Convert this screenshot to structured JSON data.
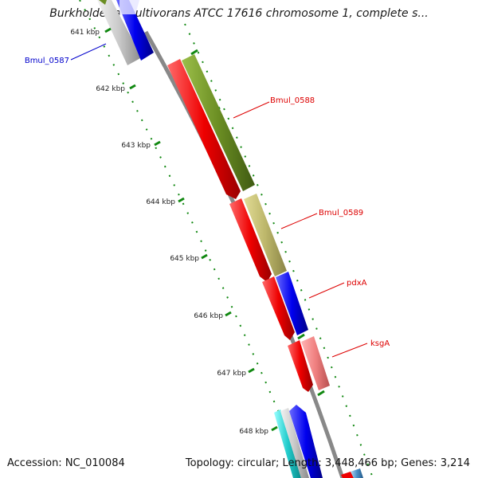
{
  "title": "Burkholderia multivorans ATCC 17616 chromosome 1, complete s...",
  "accession": "Accession: NC_010084",
  "info": "Topology: circular; Length: 3,448,466 bp; Genes: 3,214",
  "ticks": [
    "641 kbp",
    "642 kbp",
    "643 kbp",
    "644 kbp",
    "645 kbp",
    "646 kbp",
    "647 kbp",
    "648 kbp"
  ],
  "genes": [
    {
      "label": "Bmul_0587",
      "color": "#0000cc"
    },
    {
      "label": "Bmul_0588",
      "color": "#dd0000"
    },
    {
      "label": "Bmul_0589",
      "color": "#dd0000"
    },
    {
      "label": "pdxA",
      "color": "#dd0000"
    },
    {
      "label": "ksgA",
      "color": "#dd0000"
    }
  ],
  "colors": {
    "cds": "#ee0000",
    "olive": "#6b8e23",
    "khaki": "#bdb76b",
    "blue": "#0000ee",
    "pink": "#f08080",
    "backbone": "#888888",
    "tick": "#118811"
  }
}
